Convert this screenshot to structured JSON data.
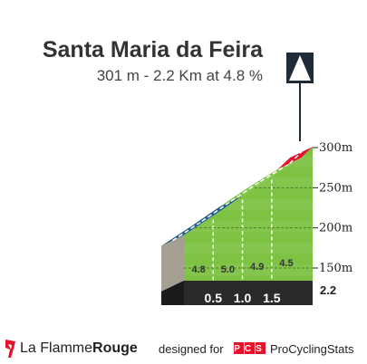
{
  "header": {
    "title": "Santa Maria da Feira",
    "subtitle": "301 m - 2.2 Km at 4.8 %",
    "category": "4"
  },
  "colors": {
    "green": "#7dc242",
    "blue": "#1b5e8a",
    "red": "#e3132c",
    "base": "#2a2a2a",
    "side": "#a59e92"
  },
  "chart_data": {
    "type": "area",
    "title": "Santa Maria da Feira",
    "subtitle": "301 m - 2.2 Km at 4.8 %",
    "ylim": [
      195,
      300
    ],
    "y_ticks": [
      {
        "value": 300,
        "label": "300m"
      },
      {
        "value": 250,
        "label": "250m"
      },
      {
        "value": 200,
        "label": "200m"
      },
      {
        "value": 150,
        "label": "150m"
      }
    ],
    "segments": [
      {
        "from_km": 0.0,
        "to_km": 0.5,
        "gradient": 4.8,
        "color": "blue"
      },
      {
        "from_km": 0.5,
        "to_km": 1.0,
        "gradient": 5.0,
        "color": "blue"
      },
      {
        "from_km": 1.0,
        "to_km": 1.5,
        "gradient": 4.9,
        "color": "green"
      },
      {
        "from_km": 1.5,
        "to_km": 2.0,
        "gradient": 4.5,
        "color": "green"
      },
      {
        "from_km": 2.0,
        "to_km": 2.2,
        "gradient": 7.0,
        "color": "red"
      }
    ],
    "grade_labels": [
      "4.8",
      "5.0",
      "4.9",
      "4.5"
    ],
    "km_markers": [
      {
        "km": 0.5,
        "label": "0.5"
      },
      {
        "km": 1.0,
        "label": "1.0"
      },
      {
        "km": 1.5,
        "label": "1.5"
      }
    ],
    "total_km_label": "2.2",
    "summit_m": 301,
    "distance_km": 2.2,
    "avg_gradient": 4.8,
    "grid": true
  },
  "footer": {
    "brand_left": "La Flamme",
    "brand_right": "Rouge",
    "designed_for": "designed for",
    "pcs_logo": "PCS",
    "pcs_name": "ProCyclingStats"
  }
}
